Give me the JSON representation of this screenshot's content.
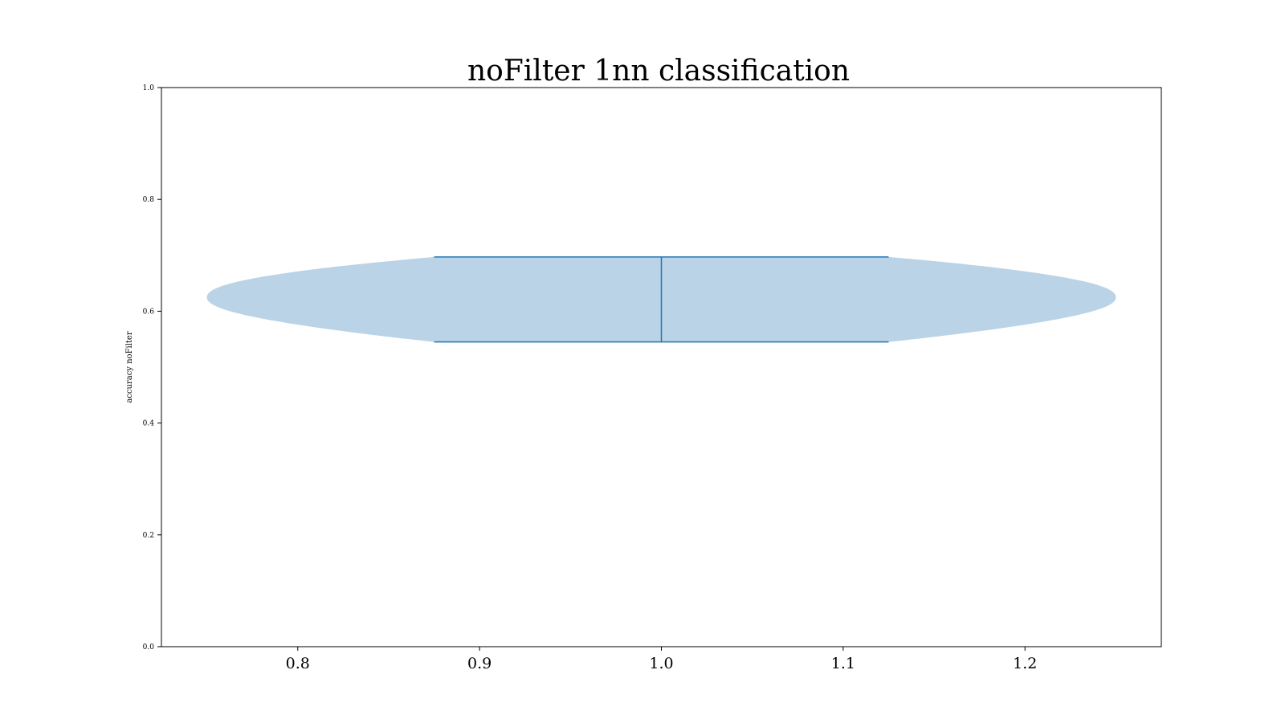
{
  "chart_data": {
    "type": "violin",
    "title": "noFilter 1nn classification",
    "xlabel": "",
    "ylabel": "accuracy noFilter",
    "xlim": [
      0.725,
      1.275
    ],
    "ylim": [
      0.0,
      1.0
    ],
    "xticks": [
      "0.8",
      "0.9",
      "1.0",
      "1.1",
      "1.2"
    ],
    "yticks": [
      "0.0",
      "0.2",
      "0.4",
      "0.6",
      "0.8",
      "1.0"
    ],
    "grid": false,
    "colors": {
      "body": "#a9c8e0",
      "lines": "#1f77b4"
    },
    "violin": {
      "position": 1.0,
      "min": 0.545,
      "max": 0.697,
      "mode": 0.625,
      "half_width_max": 0.25,
      "half_width_at_extremes": 0.125,
      "cap_half_width": 0.125
    }
  }
}
